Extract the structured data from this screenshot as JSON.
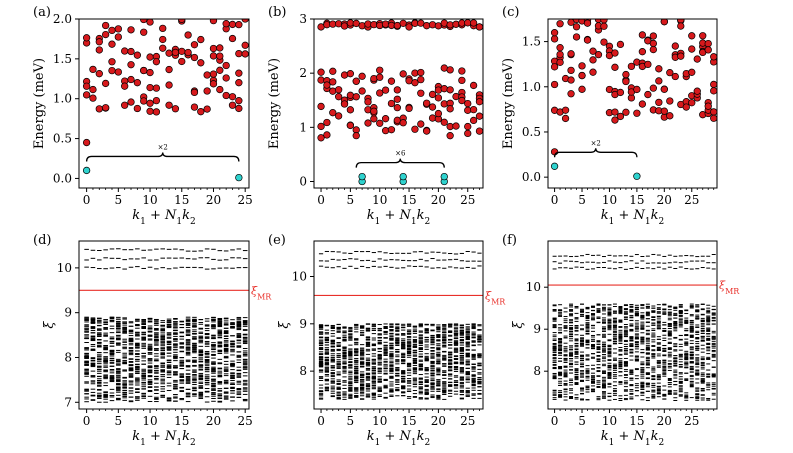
{
  "colors": {
    "red_dot": "#d7191c",
    "cyan_dot": "#2fd3cf",
    "ref_line": "#e8302a",
    "ink": "#000000"
  },
  "chart_data": [
    {
      "panel": "(a)",
      "type": "scatter",
      "xlabel": "k_1 + N_1k_2",
      "ylabel": "Energy (meV)",
      "xlim": [
        -1.2,
        25.6
      ],
      "ylim": [
        -0.12,
        2.0
      ],
      "xticks": [
        0,
        5,
        10,
        15,
        20,
        25
      ],
      "yticks": [
        0.0,
        0.5,
        1.0,
        1.5,
        2.0
      ],
      "ytick_labels": [
        "0.0",
        "0.5",
        "1.0",
        "1.5",
        "2.0"
      ],
      "nk": 26,
      "excited_range": [
        0.45,
        2.0
      ],
      "ground": [
        {
          "x": 0,
          "y": 0.1
        },
        {
          "x": 24,
          "y": 0.01
        }
      ],
      "annotation": {
        "text": "×2",
        "x0": 0,
        "x1": 24
      },
      "grid": false
    },
    {
      "panel": "(b)",
      "type": "scatter",
      "xlabel": "k_1 + N_1k_2",
      "ylabel": "Energy (meV)",
      "xlim": [
        -1.2,
        27.6
      ],
      "ylim": [
        -0.12,
        3.0
      ],
      "xticks": [
        0,
        5,
        10,
        15,
        20,
        25
      ],
      "yticks": [
        0,
        1,
        2,
        3
      ],
      "ytick_labels": [
        "0",
        "1",
        "2",
        "3"
      ],
      "nk": 28,
      "excited_bands": [
        [
          0.8,
          2.1
        ],
        [
          2.85,
          3.0
        ]
      ],
      "ground": [
        {
          "x": 7,
          "y": 0.0
        },
        {
          "x": 7,
          "y": 0.09
        },
        {
          "x": 14,
          "y": 0.0
        },
        {
          "x": 14,
          "y": 0.09
        },
        {
          "x": 21,
          "y": 0.0
        },
        {
          "x": 21,
          "y": 0.09
        }
      ],
      "annotation": {
        "text": "×6",
        "x0": 6,
        "x1": 21
      },
      "grid": false
    },
    {
      "panel": "(c)",
      "type": "scatter",
      "xlabel": "k_1 + N_1k_2",
      "ylabel": "Energy (meV)",
      "xlim": [
        -1.2,
        29.6
      ],
      "ylim": [
        -0.12,
        1.75
      ],
      "xticks": [
        0,
        5,
        10,
        15,
        20,
        25
      ],
      "yticks": [
        0.0,
        0.5,
        1.0,
        1.5
      ],
      "ytick_labels": [
        "0.0",
        "0.5",
        "1.0",
        "1.5"
      ],
      "nk": 30,
      "excited_range": [
        0.28,
        1.75
      ],
      "ground": [
        {
          "x": 0,
          "y": 0.12
        },
        {
          "x": 15,
          "y": 0.01
        }
      ],
      "annotation": {
        "text": "×2",
        "x0": 0,
        "x1": 15
      },
      "grid": false
    },
    {
      "panel": "(d)",
      "type": "entanglement_spectrum",
      "xlabel": "k_1 + N_1k_2",
      "ylabel": "ξ",
      "xlim": [
        -1.2,
        25.6
      ],
      "ylim": [
        6.85,
        10.6
      ],
      "xticks": [
        0,
        5,
        10,
        15,
        20,
        25
      ],
      "yticks": [
        7,
        8,
        9,
        10
      ],
      "ytick_labels": [
        "7",
        "8",
        "9",
        "10"
      ],
      "nk": 26,
      "low_band": [
        7.0,
        8.9
      ],
      "upper_levels": [
        10.0,
        10.2,
        10.4
      ],
      "xi_mr": 9.5,
      "ref_label": "ξMR",
      "grid": false
    },
    {
      "panel": "(e)",
      "type": "entanglement_spectrum",
      "xlabel": "k_1 + N_1k_2",
      "ylabel": "ξ",
      "xlim": [
        -1.2,
        27.6
      ],
      "ylim": [
        7.2,
        10.75
      ],
      "xticks": [
        0,
        5,
        10,
        15,
        20,
        25
      ],
      "yticks": [
        8,
        9,
        10
      ],
      "ytick_labels": [
        "8",
        "9",
        "10"
      ],
      "nk": 28,
      "low_band": [
        7.4,
        9.0
      ],
      "upper_levels": [
        10.2,
        10.35,
        10.5
      ],
      "xi_mr": 9.6,
      "ref_label": "ξMR",
      "grid": false
    },
    {
      "panel": "(f)",
      "type": "entanglement_spectrum",
      "xlabel": "k_1 + N_1k_2",
      "ylabel": "ξ",
      "xlim": [
        -1.2,
        29.6
      ],
      "ylim": [
        7.1,
        11.1
      ],
      "xticks": [
        0,
        5,
        10,
        15,
        20,
        25
      ],
      "yticks": [
        8,
        9,
        10
      ],
      "ytick_labels": [
        "8",
        "9",
        "10"
      ],
      "nk": 30,
      "low_band": [
        7.3,
        9.6
      ],
      "upper_levels": [
        10.45,
        10.6,
        10.75
      ],
      "xi_mr": 10.05,
      "ref_label": "ξMR",
      "grid": false
    }
  ]
}
